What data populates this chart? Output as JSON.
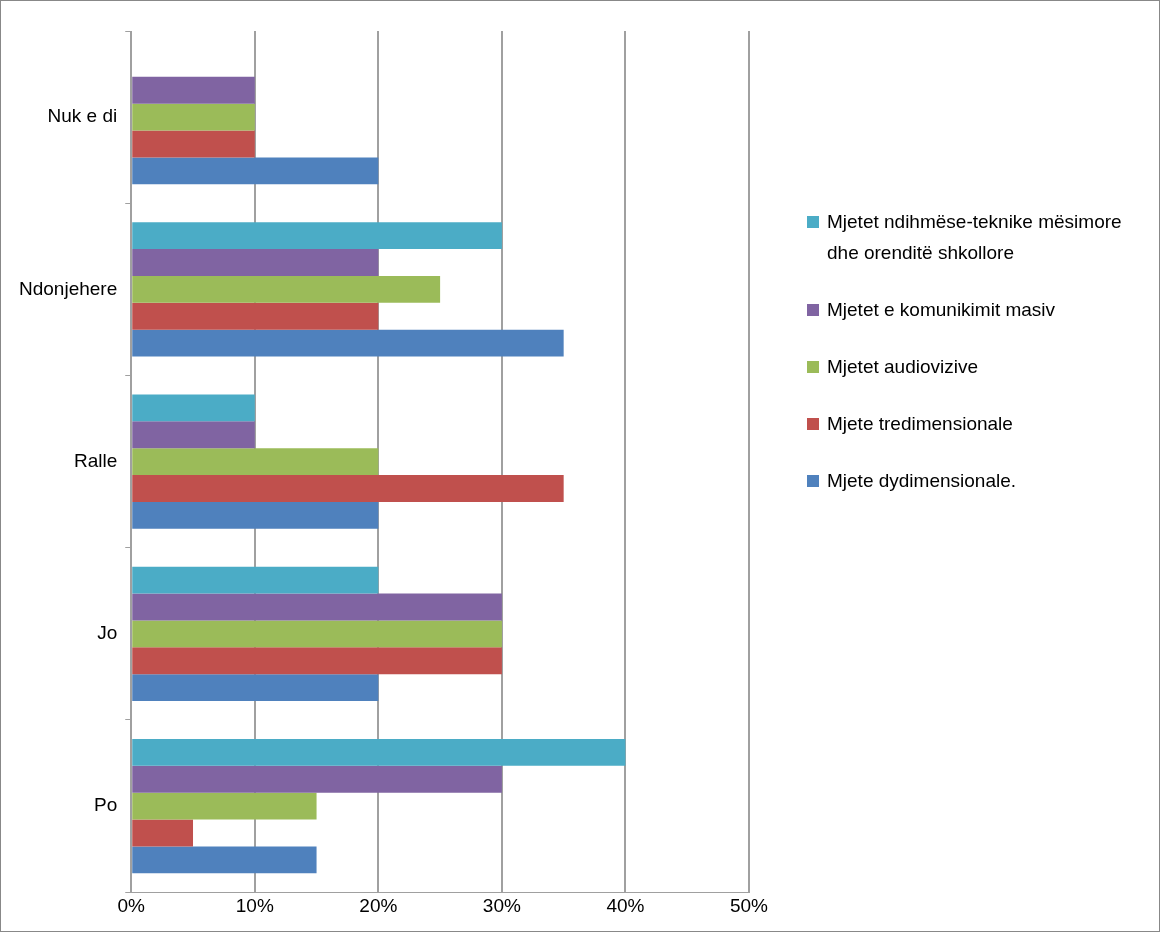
{
  "chart_data": {
    "type": "bar",
    "orientation": "horizontal",
    "categories": [
      "Nuk e di",
      "Ndonjehere",
      "Ralle",
      "Jo",
      "Po"
    ],
    "series": [
      {
        "name": "Mjetet ndihmëse-teknike mësimore dhe orenditë shkollore",
        "color": "#4bacc6",
        "values": [
          0,
          30,
          10,
          20,
          40
        ]
      },
      {
        "name": "Mjetet e komunikimit masiv",
        "color": "#8064a2",
        "values": [
          10,
          20,
          10,
          30,
          30
        ]
      },
      {
        "name": "Mjetet audiovizive",
        "color": "#9bbb59",
        "values": [
          10,
          25,
          20,
          30,
          15
        ]
      },
      {
        "name": "Mjete tredimensionale",
        "color": "#c0504d",
        "values": [
          10,
          20,
          35,
          30,
          5
        ]
      },
      {
        "name": "Mjete dydimensionale.",
        "color": "#4f81bd",
        "values": [
          20,
          35,
          20,
          20,
          15
        ]
      }
    ],
    "xlim": [
      0,
      50
    ],
    "xticks": [
      {
        "value": 0,
        "label": "0%"
      },
      {
        "value": 10,
        "label": "10%"
      },
      {
        "value": 20,
        "label": "20%"
      },
      {
        "value": 30,
        "label": "30%"
      },
      {
        "value": 40,
        "label": "40%"
      },
      {
        "value": 50,
        "label": "50%"
      }
    ],
    "grid": "x",
    "legend": "right"
  }
}
